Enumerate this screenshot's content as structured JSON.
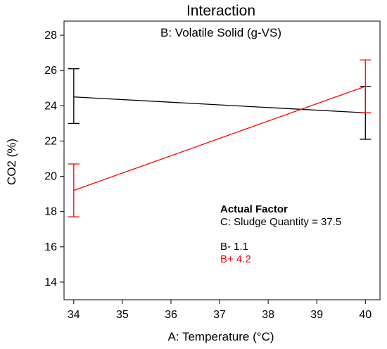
{
  "chart_data": {
    "type": "line",
    "title": "Interaction",
    "subtitle": "B: Volatile Solid (g-VS)",
    "xlabel": "A: Temperature (°C)",
    "ylabel": "CO2 (%)",
    "x_ticks": [
      34,
      35,
      36,
      37,
      38,
      39,
      40
    ],
    "y_ticks": [
      14,
      16,
      18,
      20,
      22,
      24,
      26,
      28
    ],
    "xlim": [
      33.8,
      40.3
    ],
    "ylim": [
      13.0,
      28.8
    ],
    "x": [
      34,
      40
    ],
    "series": [
      {
        "name": "B- 1.1",
        "color": "#000000",
        "values": [
          24.5,
          23.6
        ],
        "error_low": [
          23.0,
          22.1
        ],
        "error_high": [
          26.1,
          25.1
        ]
      },
      {
        "name": "B+ 4.2",
        "color": "#ff0000",
        "values": [
          19.2,
          25.1
        ],
        "error_low": [
          17.7,
          23.6
        ],
        "error_high": [
          20.7,
          26.6
        ]
      }
    ],
    "annotation": {
      "heading": "Actual Factor",
      "line": "C: Sludge Quantity = 37.5"
    },
    "grid": false
  }
}
